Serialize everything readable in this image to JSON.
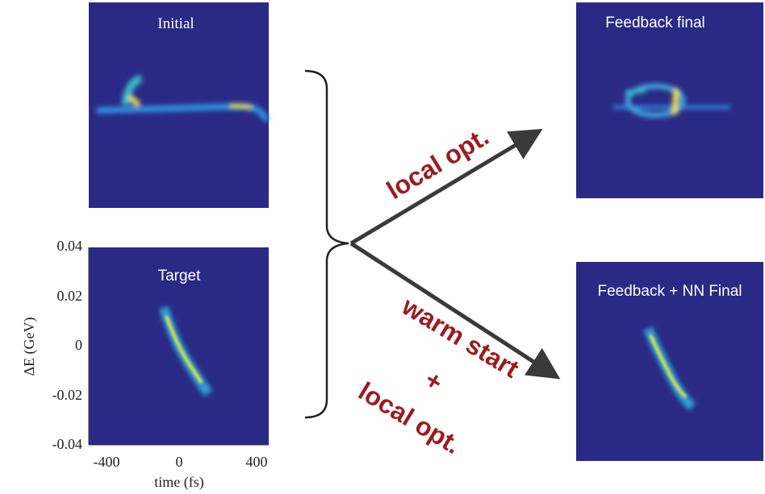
{
  "panels": [
    {
      "title": "Initial"
    },
    {
      "title": "Target"
    },
    {
      "title": "Feedback final"
    },
    {
      "title": "Feedback + NN Final"
    }
  ],
  "axes": {
    "y_ticks": [
      "0.04",
      "0.02",
      "0",
      "-0.02",
      "-0.04"
    ],
    "x_ticks": [
      "-400",
      "0",
      "400"
    ],
    "x_label": "time (fs)",
    "y_label": "ΔE (GeV)"
  },
  "arrows": [
    {
      "label": "local opt."
    },
    {
      "label_lines": [
        "warm start",
        "+",
        "local opt."
      ]
    }
  ]
}
